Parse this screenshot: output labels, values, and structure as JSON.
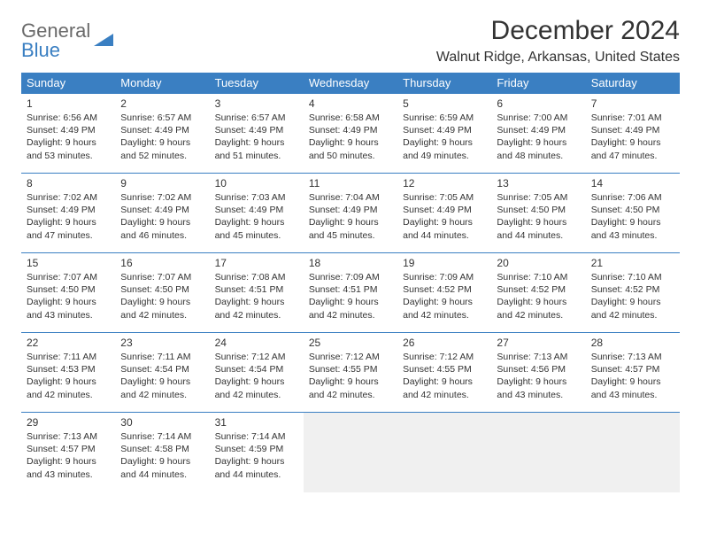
{
  "logo": {
    "line1": "General",
    "line2": "Blue"
  },
  "title": "December 2024",
  "location": "Walnut Ridge, Arkansas, United States",
  "colors": {
    "header_bg": "#3a7fc2",
    "header_fg": "#ffffff",
    "border": "#3a7fc2",
    "empty_bg": "#f0f0f0",
    "text": "#333333",
    "logo_gray": "#6a6a6a",
    "logo_blue": "#3a7fc2"
  },
  "weekdays": [
    "Sunday",
    "Monday",
    "Tuesday",
    "Wednesday",
    "Thursday",
    "Friday",
    "Saturday"
  ],
  "weeks": [
    [
      {
        "day": "1",
        "sunrise": "Sunrise: 6:56 AM",
        "sunset": "Sunset: 4:49 PM",
        "daylight": "Daylight: 9 hours and 53 minutes."
      },
      {
        "day": "2",
        "sunrise": "Sunrise: 6:57 AM",
        "sunset": "Sunset: 4:49 PM",
        "daylight": "Daylight: 9 hours and 52 minutes."
      },
      {
        "day": "3",
        "sunrise": "Sunrise: 6:57 AM",
        "sunset": "Sunset: 4:49 PM",
        "daylight": "Daylight: 9 hours and 51 minutes."
      },
      {
        "day": "4",
        "sunrise": "Sunrise: 6:58 AM",
        "sunset": "Sunset: 4:49 PM",
        "daylight": "Daylight: 9 hours and 50 minutes."
      },
      {
        "day": "5",
        "sunrise": "Sunrise: 6:59 AM",
        "sunset": "Sunset: 4:49 PM",
        "daylight": "Daylight: 9 hours and 49 minutes."
      },
      {
        "day": "6",
        "sunrise": "Sunrise: 7:00 AM",
        "sunset": "Sunset: 4:49 PM",
        "daylight": "Daylight: 9 hours and 48 minutes."
      },
      {
        "day": "7",
        "sunrise": "Sunrise: 7:01 AM",
        "sunset": "Sunset: 4:49 PM",
        "daylight": "Daylight: 9 hours and 47 minutes."
      }
    ],
    [
      {
        "day": "8",
        "sunrise": "Sunrise: 7:02 AM",
        "sunset": "Sunset: 4:49 PM",
        "daylight": "Daylight: 9 hours and 47 minutes."
      },
      {
        "day": "9",
        "sunrise": "Sunrise: 7:02 AM",
        "sunset": "Sunset: 4:49 PM",
        "daylight": "Daylight: 9 hours and 46 minutes."
      },
      {
        "day": "10",
        "sunrise": "Sunrise: 7:03 AM",
        "sunset": "Sunset: 4:49 PM",
        "daylight": "Daylight: 9 hours and 45 minutes."
      },
      {
        "day": "11",
        "sunrise": "Sunrise: 7:04 AM",
        "sunset": "Sunset: 4:49 PM",
        "daylight": "Daylight: 9 hours and 45 minutes."
      },
      {
        "day": "12",
        "sunrise": "Sunrise: 7:05 AM",
        "sunset": "Sunset: 4:49 PM",
        "daylight": "Daylight: 9 hours and 44 minutes."
      },
      {
        "day": "13",
        "sunrise": "Sunrise: 7:05 AM",
        "sunset": "Sunset: 4:50 PM",
        "daylight": "Daylight: 9 hours and 44 minutes."
      },
      {
        "day": "14",
        "sunrise": "Sunrise: 7:06 AM",
        "sunset": "Sunset: 4:50 PM",
        "daylight": "Daylight: 9 hours and 43 minutes."
      }
    ],
    [
      {
        "day": "15",
        "sunrise": "Sunrise: 7:07 AM",
        "sunset": "Sunset: 4:50 PM",
        "daylight": "Daylight: 9 hours and 43 minutes."
      },
      {
        "day": "16",
        "sunrise": "Sunrise: 7:07 AM",
        "sunset": "Sunset: 4:50 PM",
        "daylight": "Daylight: 9 hours and 42 minutes."
      },
      {
        "day": "17",
        "sunrise": "Sunrise: 7:08 AM",
        "sunset": "Sunset: 4:51 PM",
        "daylight": "Daylight: 9 hours and 42 minutes."
      },
      {
        "day": "18",
        "sunrise": "Sunrise: 7:09 AM",
        "sunset": "Sunset: 4:51 PM",
        "daylight": "Daylight: 9 hours and 42 minutes."
      },
      {
        "day": "19",
        "sunrise": "Sunrise: 7:09 AM",
        "sunset": "Sunset: 4:52 PM",
        "daylight": "Daylight: 9 hours and 42 minutes."
      },
      {
        "day": "20",
        "sunrise": "Sunrise: 7:10 AM",
        "sunset": "Sunset: 4:52 PM",
        "daylight": "Daylight: 9 hours and 42 minutes."
      },
      {
        "day": "21",
        "sunrise": "Sunrise: 7:10 AM",
        "sunset": "Sunset: 4:52 PM",
        "daylight": "Daylight: 9 hours and 42 minutes."
      }
    ],
    [
      {
        "day": "22",
        "sunrise": "Sunrise: 7:11 AM",
        "sunset": "Sunset: 4:53 PM",
        "daylight": "Daylight: 9 hours and 42 minutes."
      },
      {
        "day": "23",
        "sunrise": "Sunrise: 7:11 AM",
        "sunset": "Sunset: 4:54 PM",
        "daylight": "Daylight: 9 hours and 42 minutes."
      },
      {
        "day": "24",
        "sunrise": "Sunrise: 7:12 AM",
        "sunset": "Sunset: 4:54 PM",
        "daylight": "Daylight: 9 hours and 42 minutes."
      },
      {
        "day": "25",
        "sunrise": "Sunrise: 7:12 AM",
        "sunset": "Sunset: 4:55 PM",
        "daylight": "Daylight: 9 hours and 42 minutes."
      },
      {
        "day": "26",
        "sunrise": "Sunrise: 7:12 AM",
        "sunset": "Sunset: 4:55 PM",
        "daylight": "Daylight: 9 hours and 42 minutes."
      },
      {
        "day": "27",
        "sunrise": "Sunrise: 7:13 AM",
        "sunset": "Sunset: 4:56 PM",
        "daylight": "Daylight: 9 hours and 43 minutes."
      },
      {
        "day": "28",
        "sunrise": "Sunrise: 7:13 AM",
        "sunset": "Sunset: 4:57 PM",
        "daylight": "Daylight: 9 hours and 43 minutes."
      }
    ],
    [
      {
        "day": "29",
        "sunrise": "Sunrise: 7:13 AM",
        "sunset": "Sunset: 4:57 PM",
        "daylight": "Daylight: 9 hours and 43 minutes."
      },
      {
        "day": "30",
        "sunrise": "Sunrise: 7:14 AM",
        "sunset": "Sunset: 4:58 PM",
        "daylight": "Daylight: 9 hours and 44 minutes."
      },
      {
        "day": "31",
        "sunrise": "Sunrise: 7:14 AM",
        "sunset": "Sunset: 4:59 PM",
        "daylight": "Daylight: 9 hours and 44 minutes."
      },
      null,
      null,
      null,
      null
    ]
  ]
}
